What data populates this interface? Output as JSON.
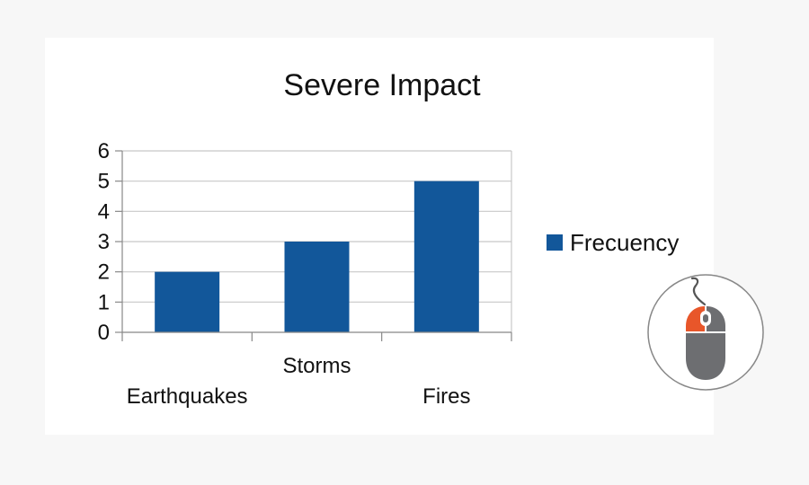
{
  "colors": {
    "background": "#f7f7f7",
    "panel": "#ffffff",
    "bar": "#12579a",
    "grid": "#c8c8c8",
    "mouse_accent": "#e8562a",
    "mouse_body": "#6d6e71"
  },
  "icons": {
    "mouse": "mouse-click-icon"
  },
  "chart_data": {
    "type": "bar",
    "title": "Severe Impact",
    "categories": [
      "Earthquakes",
      "Storms",
      "Fires"
    ],
    "series": [
      {
        "name": "Frecuency",
        "values": [
          2,
          3,
          5
        ]
      }
    ],
    "ylim": [
      0,
      6
    ],
    "yticks": [
      "0",
      "1",
      "2",
      "3",
      "4",
      "5",
      "6"
    ],
    "grid": true,
    "legend_position": "right"
  }
}
